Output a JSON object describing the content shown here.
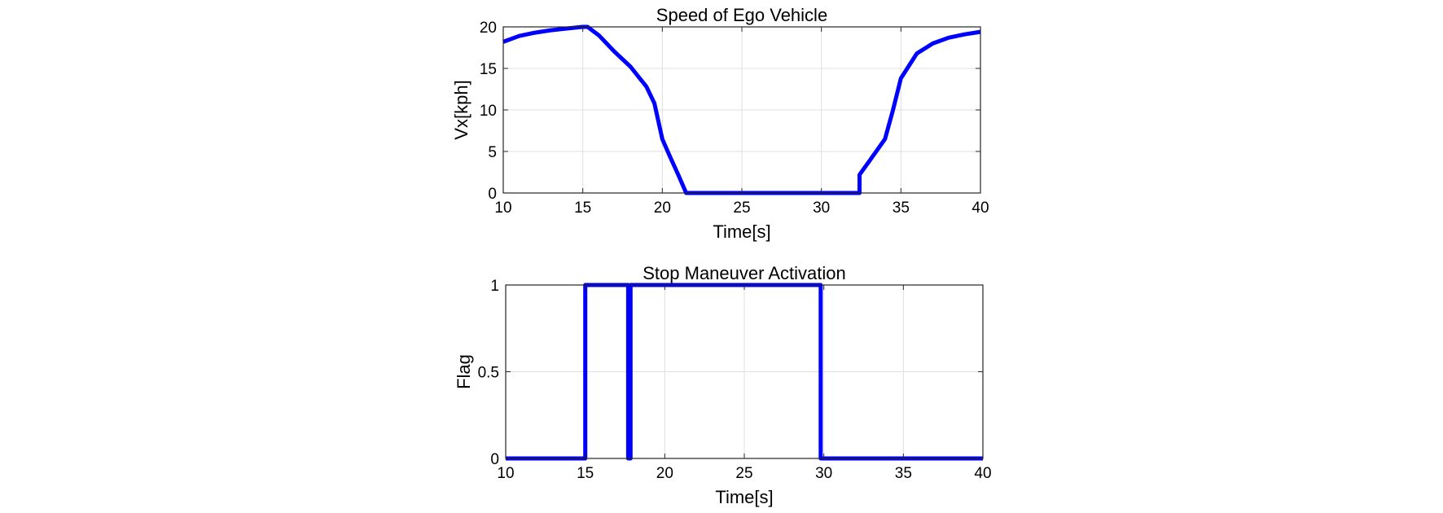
{
  "chart_data": [
    {
      "type": "line",
      "title": "Speed of Ego Vehicle",
      "xlabel": "Time[s]",
      "ylabel": "Vx[kph]",
      "xlim": [
        10,
        40
      ],
      "ylim": [
        0,
        20
      ],
      "xticks": [
        10,
        15,
        20,
        25,
        30,
        35,
        40
      ],
      "yticks": [
        0,
        5,
        10,
        15,
        20
      ],
      "grid": true,
      "color": "#0000ff",
      "series": [
        {
          "x": [
            10,
            11,
            12,
            13,
            14,
            15,
            15.3,
            16,
            17,
            18,
            19,
            19.5,
            20,
            20.5,
            21,
            21.5,
            21.5,
            22,
            25,
            30,
            32.4,
            32.4,
            33,
            34,
            34.5,
            35,
            36,
            37,
            38,
            39,
            40
          ],
          "y": [
            18.2,
            18.9,
            19.3,
            19.6,
            19.8,
            20.0,
            20.0,
            19.0,
            17.0,
            15.2,
            12.8,
            10.8,
            6.5,
            4.3,
            2.2,
            0,
            0,
            0,
            0,
            0,
            0,
            2.2,
            3.8,
            6.5,
            10.0,
            13.8,
            16.8,
            18.0,
            18.7,
            19.1,
            19.4
          ]
        }
      ]
    },
    {
      "type": "line",
      "title": "Stop Maneuver Activation",
      "xlabel": "Time[s]",
      "ylabel": "Flag",
      "xlim": [
        10,
        40
      ],
      "ylim": [
        0,
        1
      ],
      "xticks": [
        10,
        15,
        20,
        25,
        30,
        35,
        40
      ],
      "yticks": [
        0,
        0.5,
        1
      ],
      "grid": true,
      "color": "#0000ff",
      "series": [
        {
          "x": [
            10,
            15.0,
            15.0,
            17.7,
            17.7,
            17.85,
            17.85,
            29.8,
            29.8,
            40
          ],
          "y": [
            0,
            0,
            1,
            1,
            0,
            0,
            1,
            1,
            0,
            0
          ]
        }
      ]
    }
  ]
}
